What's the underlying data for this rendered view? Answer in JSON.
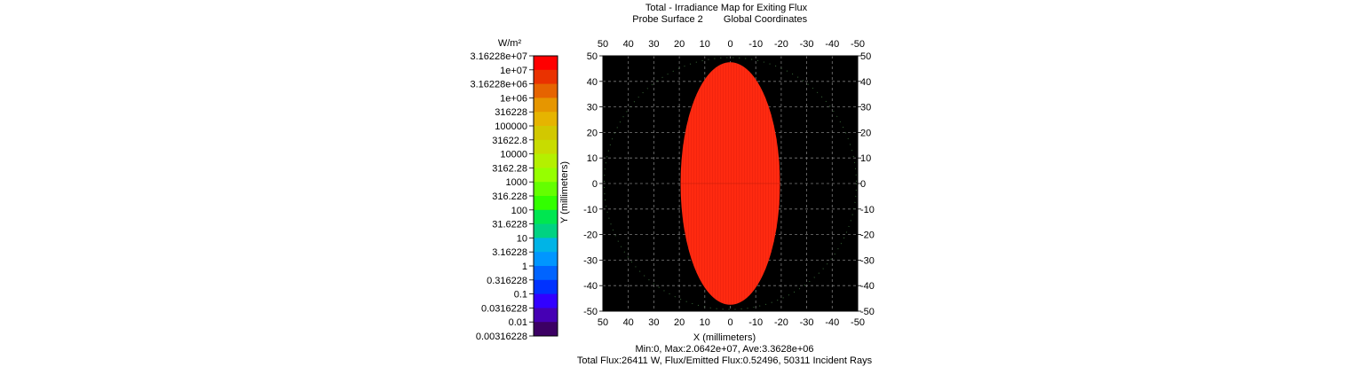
{
  "header": {
    "title": "Total - Irradiance Map for Exiting Flux",
    "subtitle_left": "Probe Surface 2",
    "subtitle_right": "Global Coordinates"
  },
  "colorbar": {
    "unit": "W/m²",
    "labels": [
      "3.16228e+07",
      "1e+07",
      "3.16228e+06",
      "1e+06",
      "316228",
      "100000",
      "31622.8",
      "10000",
      "3162.28",
      "1000",
      "316.228",
      "100",
      "31.6228",
      "10",
      "3.16228",
      "1",
      "0.316228",
      "0.1",
      "0.0316228",
      "0.01",
      "0.00316228"
    ],
    "colors": [
      "#ff0000",
      "#ea3200",
      "#e66400",
      "#e69600",
      "#e6b400",
      "#d2c800",
      "#c8dc00",
      "#b4f000",
      "#96ff00",
      "#64ff00",
      "#32ff00",
      "#00e650",
      "#00d282",
      "#00b4e6",
      "#0096ff",
      "#0064ff",
      "#0032ff",
      "#3200ff",
      "#4600b4",
      "#3c0064"
    ]
  },
  "footer": {
    "stats": "Min:0, Max:2.0642e+07, Ave:3.3628e+06",
    "flux": "Total Flux:26411 W, Flux/Emitted Flux:0.52496, 50311 Incident Rays"
  },
  "chart_data": {
    "type": "heatmap",
    "xlabel": "X (millimeters)",
    "ylabel": "Y (millimeters)",
    "xlim": [
      50,
      -50
    ],
    "ylim": [
      -50,
      50
    ],
    "x_ticks": [
      50,
      40,
      30,
      20,
      10,
      0,
      -10,
      -20,
      -30,
      -40,
      -50
    ],
    "y_ticks": [
      50,
      40,
      30,
      20,
      10,
      0,
      -10,
      -20,
      -30,
      -40,
      -50
    ],
    "grid": true,
    "background_color": "#000000",
    "spot": {
      "shape": "ellipse",
      "center_x": 0,
      "center_y": 0,
      "semi_axis_x": 19.5,
      "semi_axis_y": 47.5,
      "color": "#ff2a10"
    },
    "probe_boundary_radius": 49.5,
    "colorbar_scale": "log"
  }
}
